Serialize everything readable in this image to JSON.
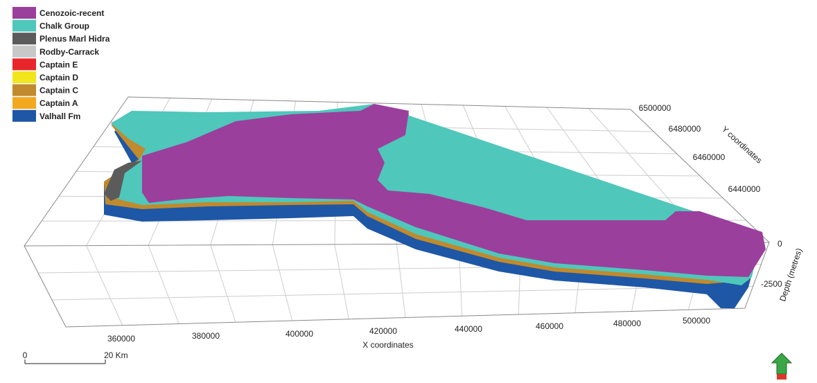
{
  "legend": [
    {
      "label": "Cenozoic-recent",
      "color": "#9b3f9d"
    },
    {
      "label": "Chalk Group",
      "color": "#4fc7bb"
    },
    {
      "label": "Plenus Marl Hidra",
      "color": "#5b5b5b"
    },
    {
      "label": "Rodby-Carrack",
      "color": "#c8c8c8"
    },
    {
      "label": "Captain E",
      "color": "#e8262a"
    },
    {
      "label": "Captain D",
      "color": "#f2e51a"
    },
    {
      "label": "Captain C",
      "color": "#c08a2d"
    },
    {
      "label": "Captain A",
      "color": "#f2a91f"
    },
    {
      "label": "Valhall Fm",
      "color": "#1e57a6"
    }
  ],
  "x_axis": {
    "title": "X coordinates",
    "ticks": [
      "360000",
      "380000",
      "400000",
      "420000",
      "440000",
      "460000",
      "480000",
      "500000"
    ]
  },
  "y_axis": {
    "title": "Y coordinates",
    "ticks": [
      "6500000",
      "6480000",
      "6460000",
      "6440000"
    ]
  },
  "z_axis": {
    "title": "Depth (metres)",
    "ticks": [
      "0",
      "-2500"
    ]
  },
  "scale_bar": {
    "start": "0",
    "end": "20 Km"
  }
}
